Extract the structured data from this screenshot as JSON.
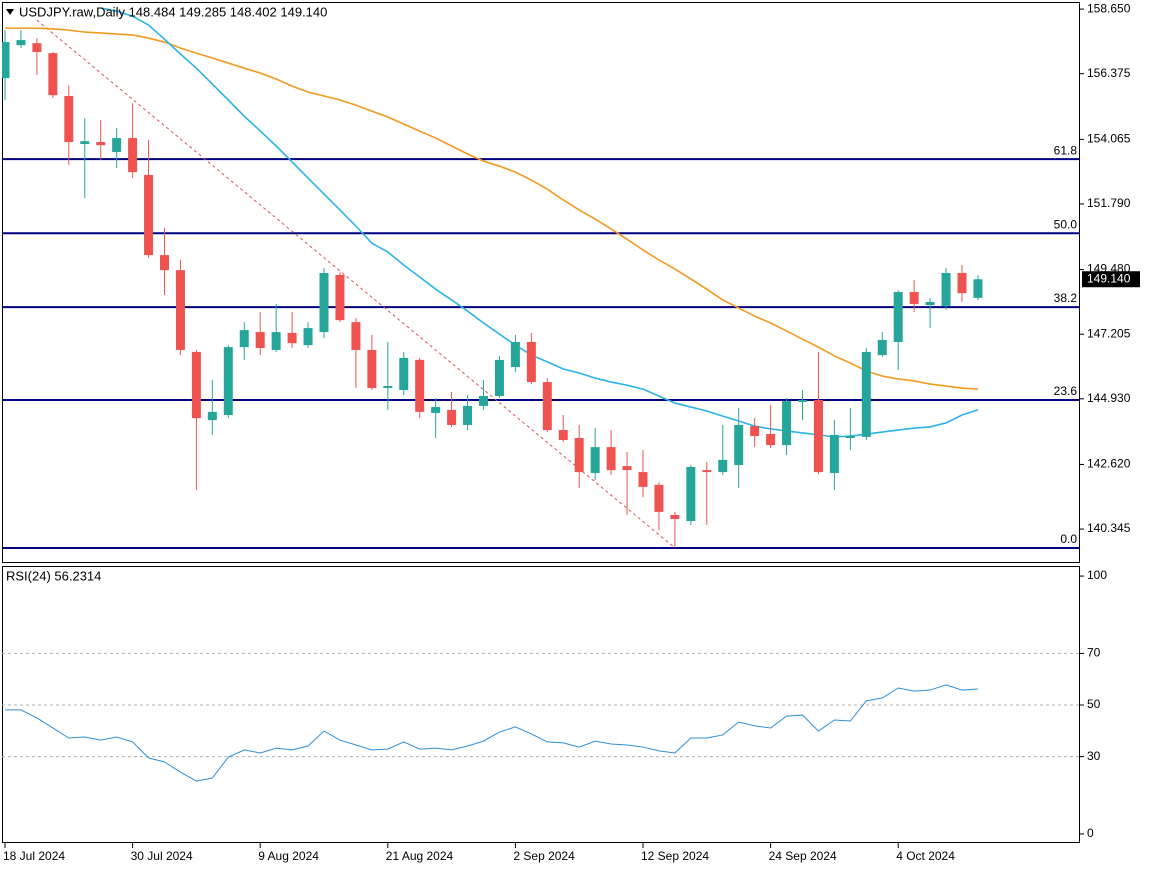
{
  "chart_data": [
    {
      "type": "candlestick",
      "title": "USDJPY.raw,Daily  148.484 149.285 148.402 149.140",
      "categories": [
        "18 Jul 2024",
        null,
        null,
        null,
        null,
        null,
        null,
        null,
        "30 Jul 2024",
        null,
        null,
        null,
        null,
        null,
        null,
        null,
        "9 Aug 2024",
        null,
        null,
        null,
        null,
        null,
        null,
        null,
        "21 Aug 2024",
        null,
        null,
        null,
        null,
        null,
        null,
        null,
        "2 Sep 2024",
        null,
        null,
        null,
        null,
        null,
        null,
        null,
        "12 Sep 2024",
        null,
        null,
        null,
        null,
        null,
        null,
        null,
        "24 Sep 2024",
        null,
        null,
        null,
        null,
        null,
        null,
        null,
        "4 Oct 2024",
        null,
        null,
        null,
        null,
        null
      ],
      "open": [
        156.22,
        157.38,
        157.45,
        157.1,
        155.59,
        153.9,
        153.97,
        153.62,
        154.11,
        152.81,
        149.99,
        149.46,
        146.58,
        144.18,
        144.36,
        146.75,
        147.28,
        146.65,
        147.25,
        146.82,
        147.28,
        149.29,
        147.63,
        146.65,
        145.31,
        145.24,
        146.3,
        144.43,
        144.54,
        144.01,
        144.68,
        145.03,
        146.05,
        146.93,
        145.52,
        143.83,
        143.55,
        142.32,
        143.23,
        142.56,
        142.35,
        141.9,
        140.84,
        140.63,
        142.42,
        142.35,
        142.6,
        143.97,
        143.69,
        143.3,
        144.82,
        144.89,
        142.32,
        143.55,
        143.59,
        146.47,
        146.93,
        148.69,
        148.23,
        148.2,
        149.36,
        148.484
      ],
      "high": [
        157.91,
        157.91,
        157.63,
        157.14,
        155.97,
        154.81,
        154.74,
        154.46,
        155.34,
        154.04,
        150.94,
        149.82,
        146.65,
        145.59,
        146.82,
        147.63,
        147.99,
        148.27,
        147.99,
        147.63,
        149.53,
        149.39,
        147.77,
        147.18,
        146.93,
        146.58,
        146.37,
        144.96,
        145.17,
        145.06,
        145.59,
        146.44,
        147.18,
        147.25,
        145.66,
        144.36,
        144.01,
        143.9,
        143.83,
        143.06,
        143.13,
        142.0,
        140.95,
        142.6,
        142.71,
        144.01,
        144.61,
        144.25,
        144.71,
        144.96,
        145.24,
        146.58,
        144.18,
        144.61,
        146.72,
        147.28,
        148.76,
        149.11,
        148.48,
        149.53,
        149.64,
        149.285
      ],
      "low": [
        155.45,
        157.28,
        156.33,
        155.52,
        153.16,
        152.0,
        153.34,
        153.05,
        152.7,
        149.89,
        148.58,
        146.47,
        141.72,
        143.66,
        144.25,
        146.3,
        146.47,
        146.58,
        146.72,
        146.72,
        147.07,
        147.63,
        145.31,
        145.24,
        144.54,
        145.06,
        144.25,
        143.55,
        143.94,
        143.83,
        144.54,
        144.96,
        145.87,
        145.45,
        143.76,
        143.41,
        141.79,
        142.07,
        142.25,
        140.84,
        141.47,
        140.31,
        139.68,
        140.49,
        140.49,
        142.25,
        141.79,
        143.23,
        143.2,
        142.95,
        144.18,
        142.28,
        141.72,
        143.13,
        143.48,
        146.4,
        145.94,
        147.99,
        147.42,
        148.06,
        148.34,
        148.402
      ],
      "close": [
        157.49,
        157.56,
        157.14,
        155.62,
        153.97,
        154.0,
        153.86,
        154.11,
        152.91,
        149.99,
        149.46,
        146.65,
        144.25,
        144.47,
        146.75,
        147.35,
        146.72,
        147.28,
        146.89,
        147.42,
        149.36,
        147.7,
        146.65,
        145.31,
        145.38,
        146.37,
        144.47,
        144.64,
        144.01,
        144.68,
        145.03,
        146.3,
        146.93,
        145.52,
        143.83,
        143.48,
        142.35,
        143.23,
        142.42,
        142.42,
        141.83,
        140.95,
        140.7,
        142.53,
        142.35,
        142.78,
        144.01,
        143.62,
        143.3,
        144.85,
        144.89,
        142.35,
        143.66,
        143.62,
        146.58,
        147.0,
        148.69,
        148.27,
        148.34,
        149.36,
        148.65,
        149.14
      ],
      "up_color": "#26a69a",
      "down_color": "#ef5350",
      "series": [
        {
          "color": "#f39a1e",
          "values": [
            157.98,
            157.98,
            157.98,
            157.95,
            157.91,
            157.84,
            157.81,
            157.77,
            157.74,
            157.63,
            157.49,
            157.28,
            157.1,
            156.93,
            156.75,
            156.57,
            156.4,
            156.19,
            155.94,
            155.73,
            155.59,
            155.45,
            155.27,
            155.06,
            154.85,
            154.6,
            154.36,
            154.11,
            153.83,
            153.55,
            153.3,
            153.12,
            152.91,
            152.63,
            152.31,
            151.93,
            151.58,
            151.26,
            150.91,
            150.55,
            150.17,
            149.82,
            149.5,
            149.15,
            148.79,
            148.41,
            148.13,
            147.84,
            147.6,
            147.32,
            147.03,
            146.75,
            146.44,
            146.19,
            145.91,
            145.73,
            145.63,
            145.56,
            145.45,
            145.38,
            145.31,
            145.27
          ]
        },
        {
          "color": "#2bb3ea",
          "values": [
            null,
            null,
            null,
            null,
            null,
            null,
            158.69,
            158.58,
            158.4,
            158.09,
            157.59,
            157.07,
            156.57,
            156.01,
            155.45,
            154.88,
            154.36,
            153.83,
            153.27,
            152.7,
            152.14,
            151.58,
            151.01,
            150.41,
            150.1,
            149.64,
            149.22,
            148.79,
            148.41,
            148.02,
            147.6,
            147.21,
            146.82,
            146.47,
            146.23,
            145.98,
            145.84,
            145.66,
            145.52,
            145.41,
            145.27,
            145.03,
            144.78,
            144.64,
            144.5,
            144.32,
            144.15,
            143.97,
            143.87,
            143.8,
            143.73,
            143.66,
            143.59,
            143.62,
            143.69,
            143.76,
            143.83,
            143.9,
            143.94,
            144.08,
            144.36,
            144.54
          ]
        }
      ],
      "levels": [
        {
          "label": "61.8",
          "value": 153.37
        },
        {
          "label": "50.0",
          "value": 150.76
        },
        {
          "label": "38.2",
          "value": 148.16
        },
        {
          "label": "23.6",
          "value": 144.89
        },
        {
          "label": "0.0",
          "value": 139.68
        }
      ],
      "level_color": "#000080",
      "trendline": {
        "x": [
          2,
          42
        ],
        "y": [
          158.26,
          139.68
        ],
        "color": "#d9534f"
      },
      "last_price": {
        "value": 149.14,
        "label": "149.140"
      },
      "ylim": [
        139.15,
        158.9
      ],
      "yticks": [
        {
          "value": 158.65,
          "label": "158.650"
        },
        156.375,
        154.065,
        {
          "value": 151.79,
          "label": "151.790"
        },
        {
          "value": 149.48,
          "label": "149.480"
        },
        147.205,
        {
          "value": 144.93,
          "label": "144.930"
        },
        {
          "value": 142.62,
          "label": "142.620"
        },
        140.345
      ]
    },
    {
      "type": "line",
      "title": "RSI(24) 56.2314",
      "color": "#2f8fd8",
      "values": [
        48.1,
        48.1,
        45.0,
        41.1,
        37.2,
        37.6,
        36.4,
        37.6,
        35.7,
        29.5,
        27.9,
        24.0,
        20.5,
        21.7,
        29.8,
        32.6,
        31.4,
        33.3,
        32.6,
        34.1,
        39.9,
        36.4,
        34.5,
        32.6,
        32.9,
        35.7,
        32.9,
        33.3,
        32.6,
        34.1,
        36.0,
        39.5,
        41.5,
        38.8,
        35.7,
        35.3,
        33.7,
        36.0,
        34.9,
        34.5,
        33.7,
        32.2,
        31.4,
        37.2,
        37.2,
        38.4,
        43.4,
        41.9,
        41.1,
        45.7,
        46.1,
        39.9,
        44.2,
        43.8,
        51.6,
        52.7,
        56.6,
        55.4,
        55.8,
        57.8,
        55.8,
        56.2314
      ],
      "ylim": [
        -3.5,
        103.9
      ],
      "yticks": [
        100,
        70,
        50,
        30,
        0
      ],
      "levels": [
        70,
        50,
        30
      ]
    }
  ]
}
